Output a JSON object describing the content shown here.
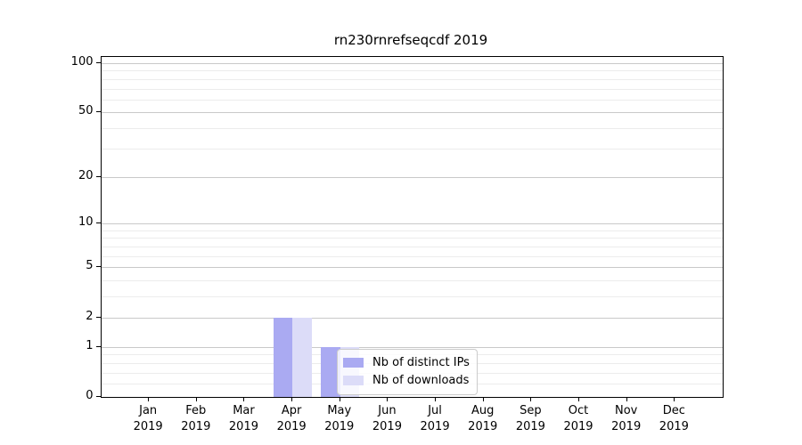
{
  "chart_data": {
    "type": "bar",
    "title": "rn230rnrefseqcdf 2019",
    "xlabel": "",
    "ylabel": "",
    "categories": [
      "Jan",
      "Feb",
      "Mar",
      "Apr",
      "May",
      "Jun",
      "Jul",
      "Aug",
      "Sep",
      "Oct",
      "Nov",
      "Dec"
    ],
    "category_year": "2019",
    "series": [
      {
        "name": "Nb of distinct IPs",
        "color": "#aaaaf2",
        "values": [
          0,
          0,
          0,
          2,
          1,
          0,
          0,
          0,
          0,
          0,
          0,
          0
        ]
      },
      {
        "name": "Nb of downloads",
        "color": "#dcdcf8",
        "values": [
          0,
          0,
          0,
          2,
          1,
          0,
          0,
          0,
          0,
          0,
          0,
          0
        ]
      }
    ],
    "yscale": "log1p",
    "ylim": [
      0,
      109
    ],
    "yticks": [
      0,
      1,
      2,
      5,
      10,
      20,
      50,
      100
    ],
    "ytick_labels": [
      "0",
      "1",
      "2",
      "5",
      "10",
      "20",
      "50",
      "100"
    ],
    "minor_yticks": [
      0.2,
      0.4,
      0.6,
      0.8,
      3,
      4,
      6,
      7,
      8,
      9,
      30,
      40,
      60,
      70,
      80,
      90
    ],
    "grid": {
      "major_color": "#c9c9c9",
      "minor_color": "#ececec",
      "on": true
    },
    "legend": {
      "position": "lower-center",
      "background_opacity": 0.8
    }
  }
}
